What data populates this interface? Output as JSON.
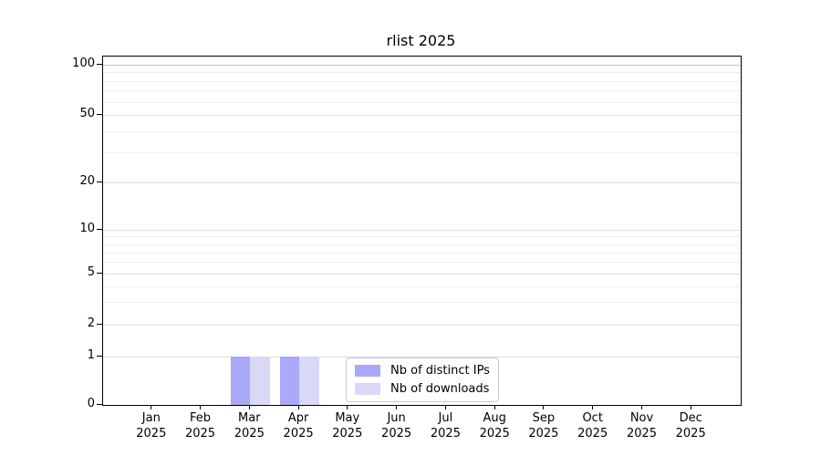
{
  "chart_data": {
    "type": "bar",
    "title": "rlist 2025",
    "categories": [
      {
        "month": "Jan",
        "year": "2025"
      },
      {
        "month": "Feb",
        "year": "2025"
      },
      {
        "month": "Mar",
        "year": "2025"
      },
      {
        "month": "Apr",
        "year": "2025"
      },
      {
        "month": "May",
        "year": "2025"
      },
      {
        "month": "Jun",
        "year": "2025"
      },
      {
        "month": "Jul",
        "year": "2025"
      },
      {
        "month": "Aug",
        "year": "2025"
      },
      {
        "month": "Sep",
        "year": "2025"
      },
      {
        "month": "Oct",
        "year": "2025"
      },
      {
        "month": "Nov",
        "year": "2025"
      },
      {
        "month": "Dec",
        "year": "2025"
      }
    ],
    "series": [
      {
        "name": "Nb of distinct IPs",
        "color": "#a9a9f7",
        "values": [
          0,
          0,
          1,
          1,
          0,
          0,
          0,
          0,
          0,
          0,
          0,
          0
        ]
      },
      {
        "name": "Nb of downloads",
        "color": "#d9d9f7",
        "values": [
          0,
          0,
          1,
          1,
          0,
          0,
          0,
          0,
          0,
          0,
          0,
          0
        ]
      }
    ],
    "y_axis": {
      "scale": "log-like with linear 0-1 segment",
      "range": [
        0,
        100
      ],
      "major_ticks": [
        0,
        1,
        2,
        5,
        10,
        20,
        50,
        100
      ],
      "minor_gridlines": [
        3,
        4,
        6,
        7,
        8,
        9,
        30,
        40,
        60,
        70,
        80,
        90
      ]
    },
    "x_axis": {
      "label_lines": 2
    },
    "legend": {
      "position": "bottom-center-inside",
      "entries": [
        "Nb of distinct IPs",
        "Nb of downloads"
      ]
    },
    "grid": {
      "horizontal": true,
      "vertical": false
    },
    "colors": {
      "grid_major": "#dedede",
      "grid_minor": "#efefef",
      "grid_top_line": "#c8c8c8",
      "spine": "#000000",
      "background": "#ffffff"
    }
  }
}
